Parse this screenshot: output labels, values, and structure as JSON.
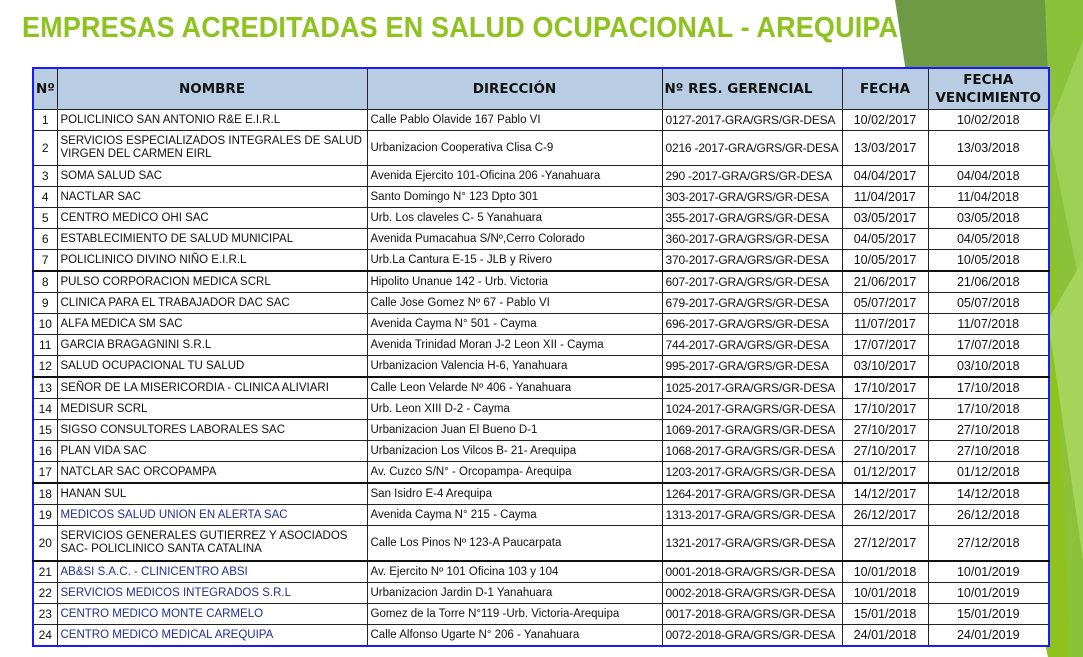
{
  "title": "EMPRESAS ACREDITADAS EN SALUD OCUPACIONAL  - AREQUIPA",
  "colors": {
    "title": "#8dc21f",
    "header_bg": "#b8cce4",
    "border": "#1a1aff",
    "accent_green": "#8dc21f"
  },
  "table": {
    "headers": [
      "Nº",
      "NOMBRE",
      "DIRECCIÓN",
      "Nº RES. GERENCIAL",
      "FECHA",
      "FECHA VENCIMIENTO"
    ],
    "rows": [
      [
        "1",
        "POLICLINICO  SAN ANTONIO R&E E.I.R.L",
        "Calle Pablo Olavide  167 Pablo VI",
        "0127-2017-GRA/GRS/GR-DESA",
        "10/02/2017",
        "10/02/2018"
      ],
      [
        "2",
        "SERVICIOS ESPECIALIZADOS INTEGRALES DE SALUD VIRGEN DEL CARMEN EIRL",
        "Urbanizacion Cooperativa Clisa  C-9",
        "0216 -2017-GRA/GRS/GR-DESA",
        "13/03/2017",
        "13/03/2018"
      ],
      [
        "3",
        "SOMA SALUD SAC",
        "Avenida Ejercito 101-Oficina 206 -Yanahuara",
        "290 -2017-GRA/GRS/GR-DESA",
        "04/04/2017",
        "04/04/2018"
      ],
      [
        "4",
        "NACTLAR SAC",
        "Santo Domingo N° 123 Dpto 301",
        "303-2017-GRA/GRS/GR-DESA",
        "11/04/2017",
        "11/04/2018"
      ],
      [
        "5",
        "CENTRO MEDICO OHI SAC",
        "Urb. Los claveles C- 5 Yanahuara",
        "355-2017-GRA/GRS/GR-DESA",
        "03/05/2017",
        "03/05/2018"
      ],
      [
        "6",
        "ESTABLECIMIENTO DE SALUD MUNICIPAL",
        "Avenida Pumacahua S/Nº,Cerro Colorado",
        "360-2017-GRA/GRS/GR-DESA",
        "04/05/2017",
        "04/05/2018"
      ],
      [
        "7",
        "POLICLINICO DIVINO NIÑO E.I.R.L",
        "Urb.La Cantura E-15  - JLB y Rivero",
        "370-2017-GRA/GRS/GR-DESA",
        "10/05/2017",
        "10/05/2018"
      ],
      [
        "8",
        "PULSO CORPORACION MEDICA SCRL",
        "Hipolito Unanue 142   - Urb. Victoria",
        "607-2017-GRA/GRS/GR-DESA",
        "21/06/2017",
        "21/06/2018"
      ],
      [
        "9",
        "CLINICA PARA EL TRABAJADOR DAC SAC",
        "Calle Jose Gomez Nº 67 - Pablo VI",
        "679-2017-GRA/GRS/GR-DESA",
        "05/07/2017",
        "05/07/2018"
      ],
      [
        "10",
        "ALFA MEDICA SM SAC",
        "Avenida Cayma N° 501 - Cayma",
        "696-2017-GRA/GRS/GR-DESA",
        "11/07/2017",
        "11/07/2018"
      ],
      [
        "11",
        "GARCIA BRAGAGNINI S.R.L",
        "Avenida Trinidad Moran  J-2  Leon XII - Cayma",
        "744-2017-GRA/GRS/GR-DESA",
        "17/07/2017",
        "17/07/2018"
      ],
      [
        "12",
        "SALUD OCUPACIONAL TU SALUD",
        "Urbanizacion Valencia H-6, Yanahuara",
        "995-2017-GRA/GRS/GR-DESA",
        "03/10/2017",
        "03/10/2018"
      ],
      [
        "13",
        "SEÑOR DE LA MISERICORDIA - CLINICA ALIVIARI",
        "Calle Leon Velarde Nº 406 - Yanahuara",
        "1025-2017-GRA/GRS/GR-DESA",
        "17/10/2017",
        "17/10/2018"
      ],
      [
        "14",
        "MEDISUR SCRL",
        "Urb. Leon XIII D-2   - Cayma",
        "1024-2017-GRA/GRS/GR-DESA",
        "17/10/2017",
        "17/10/2018"
      ],
      [
        "15",
        "SIGSO CONSULTORES LABORALES SAC",
        "Urbanizacion  Juan El Bueno D-1",
        "1069-2017-GRA/GRS/GR-DESA",
        "27/10/2017",
        "27/10/2018"
      ],
      [
        "16",
        "PLAN VIDA SAC",
        "Urbanizacion Los Vilcos B- 21-  Arequipa",
        "1068-2017-GRA/GRS/GR-DESA",
        "27/10/2017",
        "27/10/2018"
      ],
      [
        "17",
        "NATCLAR SAC ORCOPAMPA",
        "Av. Cuzco S/N° - Orcopampa- Arequipa",
        "1203-2017-GRA/GRS/GR-DESA",
        "01/12/2017",
        "01/12/2018"
      ],
      [
        "18",
        "HANAN SUL",
        "San Isidro E-4  Arequipa",
        "1264-2017-GRA/GRS/GR-DESA",
        "14/12/2017",
        "14/12/2018"
      ],
      [
        "19",
        "MEDICOS  SALUD  UNION EN ALERTA SAC",
        "Avenida Cayma N° 215 - Cayma",
        "1313-2017-GRA/GRS/GR-DESA",
        "26/12/2017",
        "26/12/2018"
      ],
      [
        "20",
        "SERVICIOS GENERALES GUTIERREZ Y ASOCIADOS SAC- POLICLINICO SANTA CATALINA",
        "Calle Los Pinos Nº 123-A  Paucarpata",
        "1321-2017-GRA/GRS/GR-DESA",
        "27/12/2017",
        "27/12/2018"
      ],
      [
        "21",
        "AB&SI S.A.C. - CLINICENTRO ABSI",
        "Av. Ejercito Nº 101 Oficina 103 y 104",
        "0001-2018-GRA/GRS/GR-DESA",
        "10/01/2018",
        "10/01/2019"
      ],
      [
        "22",
        "SERVICIOS MEDICOS INTEGRADOS S.R.L",
        "Urbanizacion Jardin D-1   Yanahuara",
        "0002-2018-GRA/GRS/GR-DESA",
        "10/01/2018",
        "10/01/2019"
      ],
      [
        "23",
        "CENTRO MEDICO MONTE CARMELO",
        "Gomez de la Torre N°119 -Urb. Victoria-Arequipa",
        "0017-2018-GRA/GRS/GR-DESA",
        "15/01/2018",
        "15/01/2019"
      ],
      [
        "24",
        "CENTRO MEDICO MEDICAL AREQUIPA",
        "Calle Alfonso Ugarte N° 206 - Yanahuara",
        "0072-2018-GRA/GRS/GR-DESA",
        "24/01/2018",
        "24/01/2019"
      ]
    ]
  }
}
